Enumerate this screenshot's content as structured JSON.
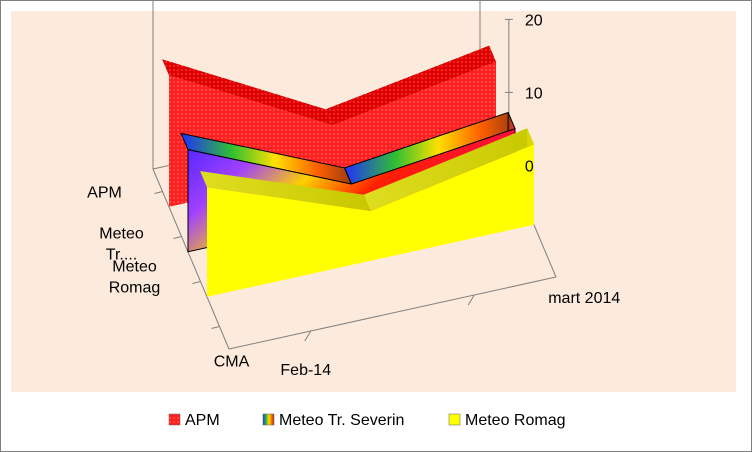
{
  "chart_data": {
    "type": "area",
    "title": "",
    "categories": [
      "Feb-14",
      "mart 2014"
    ],
    "series_axis": [
      "APM",
      "Meteo Tr....",
      "Meteo Romag",
      "CMA"
    ],
    "series": [
      {
        "name": "APM",
        "values": [
          18,
          10
        ],
        "color": "#ff1f1f"
      },
      {
        "name": "Meteo Tr. Severin",
        "values": [
          14,
          7
        ],
        "color": "#2e7fd6"
      },
      {
        "name": "Meteo  Romag",
        "values": [
          15,
          11
        ],
        "color": "#ffff00"
      }
    ],
    "z_ticks": [
      "0",
      "10",
      "20"
    ],
    "zlim": [
      0,
      20
    ],
    "grid": false,
    "legend_position": "bottom"
  }
}
